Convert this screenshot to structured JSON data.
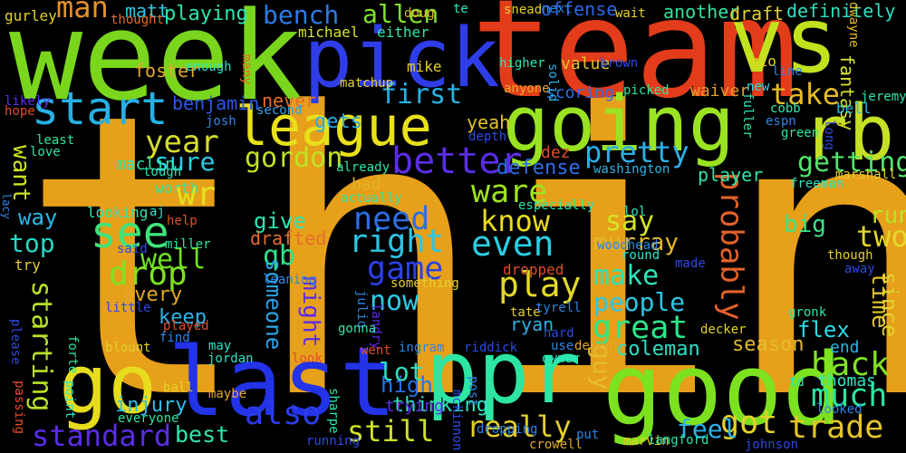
{
  "background": "#000000",
  "words": [
    {
      "text": "think",
      "color": "#e6a01a"
    },
    {
      "text": "team",
      "color": "#e33c1a"
    },
    {
      "text": "week",
      "color": "#7ad61c"
    },
    {
      "text": "vs",
      "color": "#c2e21e"
    },
    {
      "text": "pick",
      "color": "#2f3de8"
    },
    {
      "text": "going",
      "color": "#9ae322"
    },
    {
      "text": "league",
      "color": "#e8e01a"
    },
    {
      "text": "rb",
      "color": "#c6e026"
    },
    {
      "text": "good",
      "color": "#7ce21f"
    },
    {
      "text": "ppr",
      "color": "#2ce6a2"
    },
    {
      "text": "last",
      "color": "#2233e8"
    },
    {
      "text": "go",
      "color": "#e6dc1c"
    },
    {
      "text": "start",
      "color": "#27b0e4"
    },
    {
      "text": "see",
      "color": "#3fe37a"
    },
    {
      "text": "man",
      "color": "#e6912a"
    },
    {
      "text": "bench",
      "color": "#2c7ae4"
    },
    {
      "text": "allen",
      "color": "#7fe22a"
    },
    {
      "text": "first",
      "color": "#27b2e6"
    },
    {
      "text": "better",
      "color": "#5b2de8"
    },
    {
      "text": "pretty",
      "color": "#2cb0e6"
    },
    {
      "text": "take",
      "color": "#e4bb28"
    },
    {
      "text": "year",
      "color": "#d6dd2a"
    },
    {
      "text": "sure",
      "color": "#27cde6"
    },
    {
      "text": "wr",
      "color": "#e3e11d"
    },
    {
      "text": "gordon",
      "color": "#bfe326"
    },
    {
      "text": "getting",
      "color": "#54e26d"
    },
    {
      "text": "ware",
      "color": "#9ee320"
    },
    {
      "text": "need",
      "color": "#2c6ee6"
    },
    {
      "text": "know",
      "color": "#e8db1d"
    },
    {
      "text": "drop",
      "color": "#7fe222"
    },
    {
      "text": "play",
      "color": "#e3d82a"
    },
    {
      "text": "even",
      "color": "#2acfe2"
    },
    {
      "text": "right",
      "color": "#2cc6e6"
    },
    {
      "text": "say",
      "color": "#d6e428"
    },
    {
      "text": "probably",
      "color": "#e3612c"
    },
    {
      "text": "two",
      "color": "#e3d82a"
    },
    {
      "text": "run",
      "color": "#b7e326"
    },
    {
      "text": "top",
      "color": "#27d8c2"
    },
    {
      "text": "way",
      "color": "#2cb8e6"
    },
    {
      "text": "want",
      "color": "#cce323"
    },
    {
      "text": "well",
      "color": "#6ee122"
    },
    {
      "text": "game",
      "color": "#2c40e8"
    },
    {
      "text": "now",
      "color": "#2ccbe6"
    },
    {
      "text": "make",
      "color": "#2ce4b8"
    },
    {
      "text": "people",
      "color": "#2cc7e6"
    },
    {
      "text": "great",
      "color": "#2ce68a"
    },
    {
      "text": "back",
      "color": "#82e322"
    },
    {
      "text": "much",
      "color": "#2ce6a0"
    },
    {
      "text": "lot",
      "color": "#2ce0c0"
    },
    {
      "text": "really",
      "color": "#e3cf2c"
    },
    {
      "text": "still",
      "color": "#d0e227"
    },
    {
      "text": "got",
      "color": "#e3d12a"
    },
    {
      "text": "trade",
      "color": "#e3c52a"
    },
    {
      "text": "standard",
      "color": "#5b2de8"
    },
    {
      "text": "also",
      "color": "#2c3ce8"
    },
    {
      "text": "starting",
      "color": "#b8e226"
    },
    {
      "text": "feel",
      "color": "#2cb2e6"
    },
    {
      "text": "best",
      "color": "#2ce6b0"
    },
    {
      "text": "guy",
      "color": "#e3bc2c"
    },
    {
      "text": "high",
      "color": "#2c70e6"
    },
    {
      "text": "qb",
      "color": "#30e28a"
    },
    {
      "text": "might",
      "color": "#5b2de8"
    },
    {
      "text": "someone",
      "color": "#2ca4e6"
    },
    {
      "text": "give",
      "color": "#2ce6b5"
    },
    {
      "text": "every",
      "color": "#e4a828"
    },
    {
      "text": "keep",
      "color": "#2cb4e6"
    },
    {
      "text": "season",
      "color": "#e3bc2c"
    },
    {
      "text": "coleman",
      "color": "#2ce1c7"
    },
    {
      "text": "flex",
      "color": "#2cd9e6"
    },
    {
      "text": "end",
      "color": "#2cb4e6"
    },
    {
      "text": "thomas",
      "color": "#2ce6c6"
    },
    {
      "text": "injury",
      "color": "#2cc0e6"
    },
    {
      "text": "time",
      "color": "#e3c52a"
    },
    {
      "text": "since",
      "color": "#e3d12a"
    },
    {
      "text": "big",
      "color": "#3be286"
    },
    {
      "text": "murray",
      "color": "#e3b82a"
    },
    {
      "text": "defense",
      "color": "#2c6ee6"
    },
    {
      "text": "thinking",
      "color": "#2ce6c0"
    },
    {
      "text": "trying",
      "color": "#5b2de8"
    },
    {
      "text": "ryan",
      "color": "#2cb0e6"
    },
    {
      "text": "player",
      "color": "#2ce6a7"
    },
    {
      "text": "drafted",
      "color": "#e36e2c"
    },
    {
      "text": "gets",
      "color": "#2ca9e6"
    },
    {
      "text": "yeah",
      "color": "#e3c42c"
    },
    {
      "text": "never",
      "color": "#e36f2c"
    },
    {
      "text": "matt",
      "color": "#2cc8e6"
    },
    {
      "text": "foster",
      "color": "#e3a82c"
    },
    {
      "text": "benjamin",
      "color": "#2c5ae6"
    },
    {
      "text": "playing",
      "color": "#2ce6b0"
    },
    {
      "text": "michael",
      "color": "#d6e428"
    },
    {
      "text": "either",
      "color": "#2ce6a0"
    },
    {
      "text": "mike",
      "color": "#e3d12a"
    },
    {
      "text": "offense",
      "color": "#2c66e6"
    },
    {
      "text": "another",
      "color": "#2ce69c"
    },
    {
      "text": "draft",
      "color": "#e3d12a"
    },
    {
      "text": "definitely",
      "color": "#2ce0c0"
    },
    {
      "text": "fantasy",
      "color": "#d6e428"
    },
    {
      "text": "value",
      "color": "#e3c22c"
    },
    {
      "text": "scoring",
      "color": "#2c6ee6"
    },
    {
      "text": "waiver",
      "color": "#e39f2c"
    },
    {
      "text": "next",
      "color": "#2c86e6"
    },
    {
      "text": "dwayne",
      "color": "#e3bc2c"
    },
    {
      "text": "gurley",
      "color": "#e3d12a"
    },
    {
      "text": "thought",
      "color": "#e36e2c"
    },
    {
      "text": "doug",
      "color": "#e3b22c"
    },
    {
      "text": "te",
      "color": "#2ce6c0"
    },
    {
      "text": "snead",
      "color": "#e3d12a"
    },
    {
      "text": "wait",
      "color": "#e3d12a"
    },
    {
      "text": "brown",
      "color": "#2c50e6"
    },
    {
      "text": "gio",
      "color": "#e3d12a"
    },
    {
      "text": "line",
      "color": "#2c86e6"
    },
    {
      "text": "bell",
      "color": "#2cb4e6"
    },
    {
      "text": "jeremy",
      "color": "#2ce6b0"
    },
    {
      "text": "new",
      "color": "#2cd8e6"
    },
    {
      "text": "picked",
      "color": "#2ce6a0"
    },
    {
      "text": "higher",
      "color": "#2ce6b5"
    },
    {
      "text": "solid",
      "color": "#2cb4e6"
    },
    {
      "text": "anyone",
      "color": "#e3a82c"
    },
    {
      "text": "enough",
      "color": "#2ce6c6"
    },
    {
      "text": "many",
      "color": "#e36e2c"
    },
    {
      "text": "likely",
      "color": "#5b2de8"
    },
    {
      "text": "hope",
      "color": "#e34e2c"
    },
    {
      "text": "josh",
      "color": "#2c86e6"
    },
    {
      "text": "second",
      "color": "#2ca4e6"
    },
    {
      "text": "matchup",
      "color": "#e3d12a"
    },
    {
      "text": "depth",
      "color": "#2c4ae6"
    },
    {
      "text": "dez",
      "color": "#e34e2c"
    },
    {
      "text": "fuller",
      "color": "#2ce6b0"
    },
    {
      "text": "cobb",
      "color": "#2ce6b0"
    },
    {
      "text": "espn",
      "color": "#2c86e6"
    },
    {
      "text": "green",
      "color": "#2ce69c"
    },
    {
      "text": "long",
      "color": "#2c4ae6"
    },
    {
      "text": "least",
      "color": "#2ce6a0"
    },
    {
      "text": "love",
      "color": "#2ce6b0"
    },
    {
      "text": "maclin",
      "color": "#2ce6b0"
    },
    {
      "text": "tough",
      "color": "#2ce6b0"
    },
    {
      "text": "washington",
      "color": "#2cb4e6"
    },
    {
      "text": "marshall",
      "color": "#e3d12a"
    },
    {
      "text": "freeman",
      "color": "#2ce6c0"
    },
    {
      "text": "already",
      "color": "#2ce6b0"
    },
    {
      "text": "worth",
      "color": "#2ce6a0"
    },
    {
      "text": "especially",
      "color": "#2ce6b0"
    },
    {
      "text": "bad",
      "color": "#e3b22c"
    },
    {
      "text": "actually",
      "color": "#2ce6b0"
    },
    {
      "text": "looking",
      "color": "#2ce6b0"
    },
    {
      "text": "aj",
      "color": "#2ce6c6"
    },
    {
      "text": "lol",
      "color": "#2ce6c6"
    },
    {
      "text": "tate",
      "color": "#e3d12a"
    },
    {
      "text": "lacy",
      "color": "#2c86e6"
    },
    {
      "text": "help",
      "color": "#e34e2c"
    },
    {
      "text": "miller",
      "color": "#2ce6a0"
    },
    {
      "text": "woodhead",
      "color": "#2c86e6"
    },
    {
      "text": "round",
      "color": "#2ce6c6"
    },
    {
      "text": "made",
      "color": "#2c4ae6"
    },
    {
      "text": "said",
      "color": "#2c4ae6"
    },
    {
      "text": "try",
      "color": "#e3d12a"
    },
    {
      "text": "though",
      "color": "#e3d12a"
    },
    {
      "text": "away",
      "color": "#2c4ae6"
    },
    {
      "text": "dropped",
      "color": "#e34e2c"
    },
    {
      "text": "leaning",
      "color": "#2c86e6"
    },
    {
      "text": "something",
      "color": "#e3d12a"
    },
    {
      "text": "julio",
      "color": "#2c86e6"
    },
    {
      "text": "landry",
      "color": "#5b2de8"
    },
    {
      "text": "tyrell",
      "color": "#2c86e6"
    },
    {
      "text": "little",
      "color": "#2c4ae6"
    },
    {
      "text": "played",
      "color": "#e34e2c"
    },
    {
      "text": "gronk",
      "color": "#2ce6b0"
    },
    {
      "text": "please",
      "color": "#2c4ae6"
    },
    {
      "text": "find",
      "color": "#2c86e6"
    },
    {
      "text": "forte",
      "color": "#2ce6a0"
    },
    {
      "text": "blount",
      "color": "#e3d12a"
    },
    {
      "text": "may",
      "color": "#2ce6c6"
    },
    {
      "text": "jordan",
      "color": "#2ce6c6"
    },
    {
      "text": "gonna",
      "color": "#2ce6b0"
    },
    {
      "text": "hard",
      "color": "#2c4ae6"
    },
    {
      "text": "use",
      "color": "#2c86e6"
    },
    {
      "text": "decent",
      "color": "#e3a82c"
    },
    {
      "text": "decker",
      "color": "#e3d12a"
    },
    {
      "text": "owner",
      "color": "#2ce6c6"
    },
    {
      "text": "ingram",
      "color": "#2c86e6"
    },
    {
      "text": "riddick",
      "color": "#2c4ae6"
    },
    {
      "text": "went",
      "color": "#e34e2c"
    },
    {
      "text": "look",
      "color": "#e34e2c"
    },
    {
      "text": "passing",
      "color": "#e34e2c"
    },
    {
      "text": "ball",
      "color": "#e3d12a"
    },
    {
      "text": "point",
      "color": "#2ce6c6"
    },
    {
      "text": "maybe",
      "color": "#e3a82c"
    },
    {
      "text": "everyone",
      "color": "#2ce6a0"
    },
    {
      "text": "sharpe",
      "color": "#2ce6b0"
    },
    {
      "text": "post",
      "color": "#2c86e6"
    },
    {
      "text": "dropping",
      "color": "#2c86e6"
    },
    {
      "text": "crowell",
      "color": "#e3a82c"
    },
    {
      "text": "put",
      "color": "#2c86e6"
    },
    {
      "text": "marvin",
      "color": "#e3d12a"
    },
    {
      "text": "langford",
      "color": "#2ce6b0"
    },
    {
      "text": "td",
      "color": "#2ce6b0"
    },
    {
      "text": "looked",
      "color": "#2c86e6"
    },
    {
      "text": "johnson",
      "color": "#2c4ae6"
    },
    {
      "text": "running",
      "color": "#2c4ae6"
    },
    {
      "text": "mckinnon",
      "color": "#2c4ae6"
    }
  ]
}
